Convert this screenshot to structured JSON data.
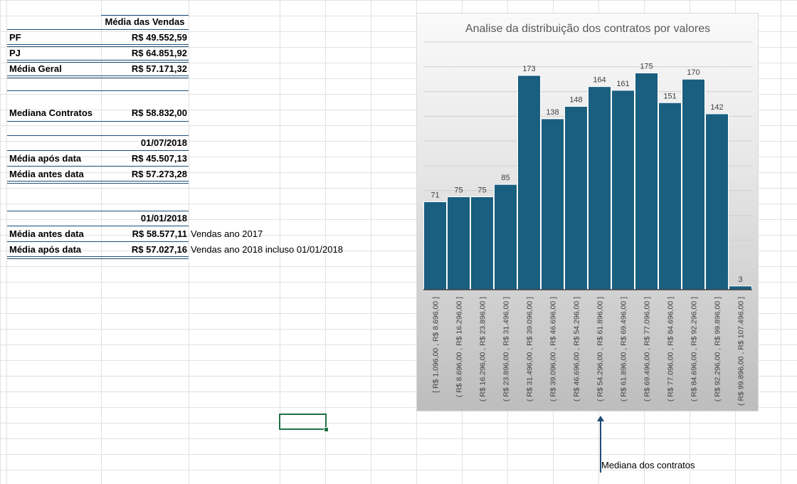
{
  "sheet": {
    "table1": {
      "header": "Média das Vendas",
      "rows": [
        {
          "label": "PF",
          "value": "R$ 49.552,59"
        },
        {
          "label": "PJ",
          "value": "R$ 64.851,92"
        },
        {
          "label": "Média Geral",
          "value": "R$ 57.171,32"
        }
      ]
    },
    "mediana": {
      "label": "Mediana Contratos",
      "value": "R$ 58.832,00"
    },
    "table2": {
      "date": "01/07/2018",
      "rows": [
        {
          "label": "Média após data",
          "value": "R$ 45.507,13"
        },
        {
          "label": "Média antes data",
          "value": "R$ 57.273,28"
        }
      ]
    },
    "table3": {
      "date": "01/01/2018",
      "rows": [
        {
          "label": "Média antes data",
          "value": "R$ 58.577,11",
          "note": "Vendas ano 2017"
        },
        {
          "label": "Média após data",
          "value": "R$ 57.027,16",
          "note": "Vendas ano 2018 incluso 01/01/2018"
        }
      ]
    },
    "annotation": "Mediana dos contratos"
  },
  "chart_data": {
    "type": "bar",
    "title": "Analise da distribuição dos contratos por valores",
    "categories": [
      "[ R$ 1.096,00 , R$ 8.696,00 ]",
      "( R$ 8.696,00 , R$ 16.296,00 ]",
      "( R$ 16.296,00 , R$ 23.896,00 ]",
      "( R$ 23.896,00 , R$ 31.496,00 ]",
      "( R$ 31.496,00 , R$ 39.096,00 ]",
      "( R$ 39.096,00 , R$ 46.696,00 ]",
      "( R$ 46.696,00 , R$ 54.296,00 ]",
      "( R$ 54.296,00 , R$ 61.896,00 ]",
      "( R$ 61.896,00 , R$ 69.496,00 ]",
      "( R$ 69.496,00 , R$ 77.096,00 ]",
      "( R$ 77.096,00 , R$ 84.696,00 ]",
      "( R$ 84.696,00 , R$ 92.296,00 ]",
      "( R$ 92.296,00 , R$ 99.896,00 ]",
      "( R$ 99.896,00 , R$ 107.496,00 ]"
    ],
    "values": [
      71,
      75,
      75,
      85,
      173,
      138,
      148,
      164,
      161,
      175,
      151,
      170,
      142,
      3
    ],
    "ylim": [
      0,
      200
    ],
    "grid": true,
    "bar_color": "#1a5e80"
  }
}
